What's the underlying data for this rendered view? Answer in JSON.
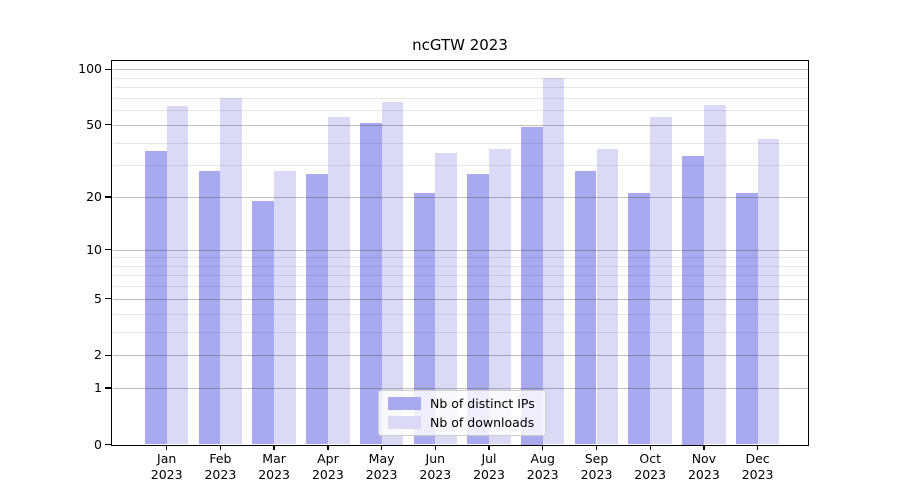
{
  "chart_data": {
    "type": "bar",
    "title": "ncGTW 2023",
    "categories": [
      "Jan",
      "Feb",
      "Mar",
      "Apr",
      "May",
      "Jun",
      "Jul",
      "Aug",
      "Sep",
      "Oct",
      "Nov",
      "Dec"
    ],
    "x_tick_year": "2023",
    "series": [
      {
        "name": "Nb of distinct IPs",
        "color": "#a9a9f0",
        "values": [
          36,
          28,
          19,
          27,
          51,
          21,
          27,
          49,
          28,
          21,
          34,
          21
        ]
      },
      {
        "name": "Nb of downloads",
        "color": "#dadaf6",
        "values": [
          63,
          70,
          28,
          55,
          67,
          35,
          37,
          90,
          37,
          55,
          64,
          42
        ]
      }
    ],
    "y_axis": {
      "scale": "symlog",
      "tick_labels": [
        "100",
        "50",
        "20",
        "10",
        "5",
        "2",
        "1",
        "0"
      ],
      "major_ticks": [
        100,
        50,
        20,
        10,
        5,
        2,
        1,
        0
      ],
      "minor_gridlines": [
        3,
        4,
        6,
        7,
        8,
        9,
        30,
        40,
        60,
        70,
        80,
        90
      ],
      "ylim": [
        0,
        113
      ]
    },
    "legend": {
      "position": "lower-center"
    },
    "grid": true
  },
  "colors": {
    "bar_distinct_ips": "#a9a9f0",
    "bar_downloads": "#dadaf6",
    "axis": "#000000",
    "grid_major": "#b3b3b3",
    "grid_minor": "#e0e0e0",
    "background": "#ffffff"
  }
}
